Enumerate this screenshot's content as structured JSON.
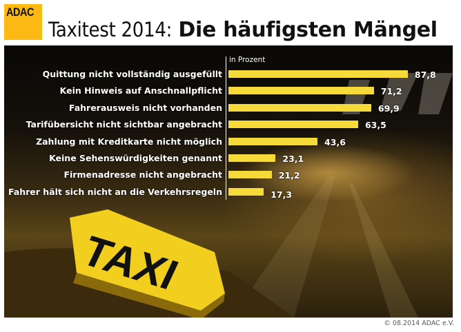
{
  "logo": "ADAC",
  "title": {
    "light": "Taxitest 2014:",
    "bold": "Die häufigsten Mängel"
  },
  "sign_text": "TAXI",
  "footer": "© 08.2014  ADAC e.V.",
  "colors": {
    "brand": "#fdb913",
    "bar": "#f5da3a"
  },
  "chart_data": {
    "type": "bar",
    "orientation": "horizontal",
    "unit_label": "in Prozent",
    "categories": [
      "Quittung nicht vollständig ausgefüllt",
      "Kein Hinweis auf Anschnallpflicht",
      "Fahrerausweis nicht vorhanden",
      "Tarifübersicht nicht sichtbar angebracht",
      "Zahlung mit Kreditkarte nicht möglich",
      "Keine Sehenswürdigkeiten genannt",
      "Firmenadresse nicht angebracht",
      "Fahrer hält sich nicht an die Verkehrsregeln"
    ],
    "values": [
      87.8,
      71.2,
      69.9,
      63.5,
      43.6,
      23.1,
      21.2,
      17.3
    ],
    "value_labels": [
      "87,8",
      "71,2",
      "69,9",
      "63,5",
      "43,6",
      "23,1",
      "21,2",
      "17,3"
    ],
    "grid": false
  }
}
